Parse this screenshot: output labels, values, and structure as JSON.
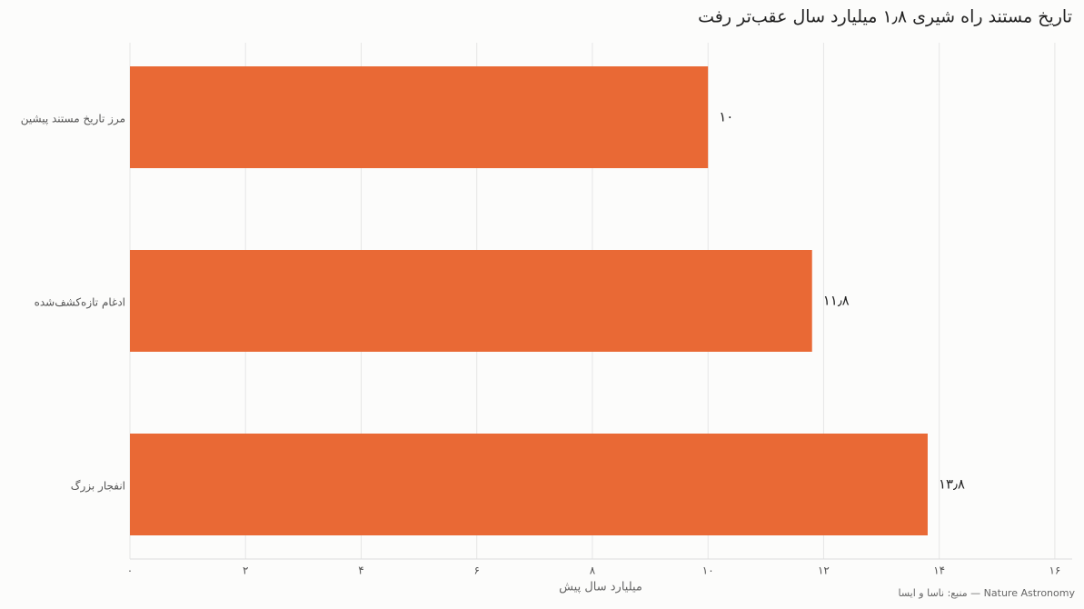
{
  "chart_data": {
    "type": "barh",
    "title": "تاریخ مستند راه شیری ۱٫۸ میلیارد سال عقب‌تر رفت",
    "categories": [
      "مرز تاریخ مستند پیشین",
      "ادغام تازه‌کشف‌شده",
      "انفجار بزرگ"
    ],
    "values": [
      10,
      11.8,
      13.8
    ],
    "value_labels": [
      "۱۰",
      "۱۱٫۸",
      "۱۳٫۸"
    ],
    "color": "#e96935",
    "xlabel": "میلیارد سال پیش",
    "source": "منبع: ناسا و ایسا — Nature Astronomy",
    "xlim": [
      0,
      16.3
    ],
    "xticks": [
      {
        "value": 0,
        "label": "۰"
      },
      {
        "value": 2,
        "label": "۲"
      },
      {
        "value": 4,
        "label": "۴"
      },
      {
        "value": 6,
        "label": "۶"
      },
      {
        "value": 8,
        "label": "۸"
      },
      {
        "value": 10,
        "label": "۱۰"
      },
      {
        "value": 12,
        "label": "۱۲"
      },
      {
        "value": 14,
        "label": "۱۴"
      },
      {
        "value": 16,
        "label": "۱۶"
      }
    ],
    "grid": true
  }
}
